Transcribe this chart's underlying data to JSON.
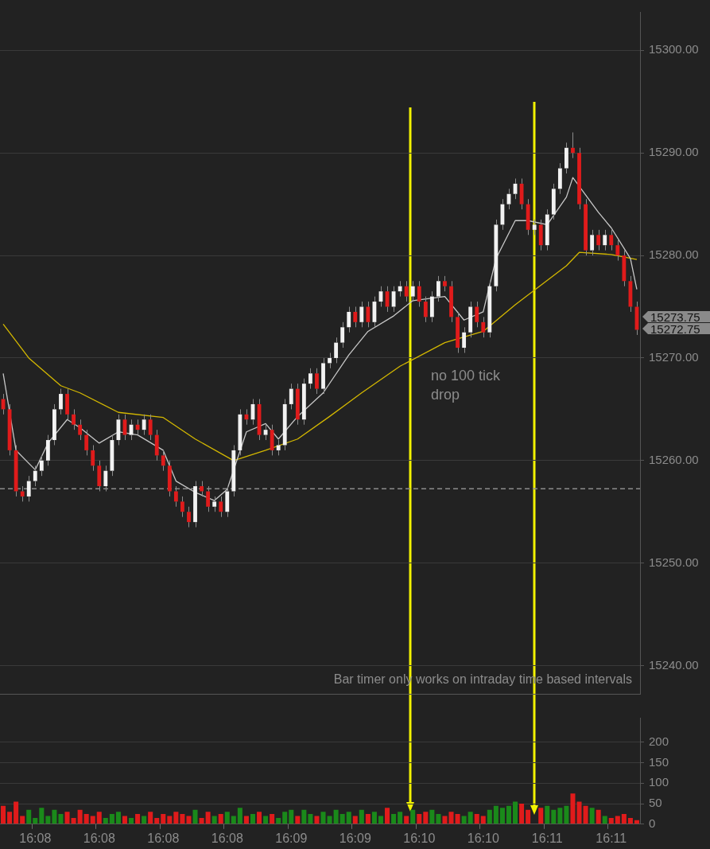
{
  "chart_data": [
    {
      "type": "candlestick",
      "categories": [
        null,
        null,
        null,
        null,
        null,
        null,
        null,
        null,
        null,
        null,
        null,
        null,
        null,
        null,
        null,
        null,
        null,
        null,
        null,
        null,
        null,
        null,
        null,
        null,
        null,
        null,
        null,
        null,
        null,
        null,
        null,
        null,
        null,
        null,
        null,
        null,
        null,
        null,
        null,
        null,
        null,
        null,
        null,
        null,
        null,
        null,
        null,
        null,
        null,
        null,
        null,
        null,
        null,
        null,
        null,
        null,
        null,
        null,
        null,
        null,
        null,
        null,
        null,
        null,
        null,
        null,
        null,
        null,
        null,
        null,
        null,
        null,
        null,
        null,
        null,
        null,
        null,
        null,
        null,
        null,
        null,
        null,
        null,
        null,
        null,
        null,
        null,
        null,
        null,
        null,
        null,
        null,
        null,
        null,
        null,
        null,
        null,
        null,
        null,
        null
      ],
      "ohlc": [
        [
          15266,
          15266.5,
          15264.5,
          15265
        ],
        [
          15265,
          15265.5,
          15260.5,
          15261
        ],
        [
          15261,
          15261.5,
          15256.5,
          15257
        ],
        [
          15257,
          15257.5,
          15256,
          15256.5
        ],
        [
          15256.5,
          15258.5,
          15256,
          15258
        ],
        [
          15258,
          15259.5,
          15257.5,
          15259
        ],
        [
          15259,
          15260.5,
          15258.5,
          15260
        ],
        [
          15260,
          15262.5,
          15259.5,
          15262
        ],
        [
          15262,
          15265.5,
          15261.5,
          15265
        ],
        [
          15265,
          15267,
          15264.5,
          15266.5
        ],
        [
          15266.5,
          15267,
          15264,
          15264.5
        ],
        [
          15264.5,
          15265,
          15263,
          15263.5
        ],
        [
          15263.5,
          15264,
          15262,
          15262.5
        ],
        [
          15262.5,
          15263,
          15260.5,
          15261
        ],
        [
          15261,
          15261.5,
          15259,
          15259.5
        ],
        [
          15259.5,
          15260,
          15257,
          15257.5
        ],
        [
          15257.5,
          15259.5,
          15257,
          15259
        ],
        [
          15259,
          15262.5,
          15258.5,
          15262
        ],
        [
          15262,
          15264.5,
          15261.5,
          15264
        ],
        [
          15264,
          15264.5,
          15262,
          15262.5
        ],
        [
          15262.5,
          15264,
          15262,
          15263.5
        ],
        [
          15263.5,
          15264,
          15262.5,
          15263
        ],
        [
          15263,
          15264.5,
          15262.5,
          15264
        ],
        [
          15264,
          15264.5,
          15262,
          15262.5
        ],
        [
          15262.5,
          15263,
          15260,
          15260.5
        ],
        [
          15260.5,
          15261,
          15259,
          15259.5
        ],
        [
          15259.5,
          15260,
          15256.5,
          15257
        ],
        [
          15257,
          15257.5,
          15255.5,
          15256
        ],
        [
          15256,
          15256.5,
          15254.5,
          15255
        ],
        [
          15255,
          15255.5,
          15253.5,
          15254
        ],
        [
          15254,
          15258,
          15253.5,
          15257.5
        ],
        [
          15257.5,
          15258,
          15256.5,
          15257
        ],
        [
          15257,
          15257.5,
          15255,
          15255.5
        ],
        [
          15255.5,
          15256.5,
          15255,
          15256
        ],
        [
          15256,
          15256.5,
          15254.5,
          15255
        ],
        [
          15255,
          15257.5,
          15254.5,
          15257
        ],
        [
          15257,
          15261.5,
          15256.5,
          15261
        ],
        [
          15261,
          15265,
          15260.5,
          15264.5
        ],
        [
          15264.5,
          15265,
          15263.5,
          15264
        ],
        [
          15264,
          15266,
          15263.5,
          15265.5
        ],
        [
          15265.5,
          15266,
          15262,
          15262.5
        ],
        [
          15262.5,
          15263.5,
          15262,
          15263
        ],
        [
          15263,
          15263.5,
          15260.5,
          15261
        ],
        [
          15261,
          15262,
          15260.5,
          15261.5
        ],
        [
          15261.5,
          15266,
          15261,
          15265.5
        ],
        [
          15265.5,
          15267.5,
          15265,
          15267
        ],
        [
          15267,
          15267.5,
          15263.5,
          15264
        ],
        [
          15264,
          15268,
          15263.5,
          15267.5
        ],
        [
          15267.5,
          15269,
          15267,
          15268.5
        ],
        [
          15268.5,
          15269,
          15266.5,
          15267
        ],
        [
          15267,
          15270,
          15266.5,
          15269.5
        ],
        [
          15269.5,
          15270.5,
          15269,
          15270
        ],
        [
          15270,
          15272,
          15269.5,
          15271.5
        ],
        [
          15271.5,
          15273.5,
          15271,
          15273
        ],
        [
          15273,
          15275,
          15272.5,
          15274.5
        ],
        [
          15274.5,
          15275,
          15273,
          15273.5
        ],
        [
          15273.5,
          15275.5,
          15273,
          15275
        ],
        [
          15275,
          15275.5,
          15273,
          15273.5
        ],
        [
          15273.5,
          15276,
          15273,
          15275.5
        ],
        [
          15275.5,
          15277,
          15275,
          15276.5
        ],
        [
          15276.5,
          15277,
          15274.5,
          15275
        ],
        [
          15275,
          15277,
          15274.5,
          15276.5
        ],
        [
          15276.5,
          15277.5,
          15276,
          15277
        ],
        [
          15277,
          15277.5,
          15275.5,
          15276
        ],
        [
          15276,
          15277.5,
          15275.5,
          15277
        ],
        [
          15277,
          15277.5,
          15275,
          15275.5
        ],
        [
          15275.5,
          15276,
          15273.5,
          15274
        ],
        [
          15274,
          15276.5,
          15273.5,
          15276
        ],
        [
          15276,
          15278,
          15275.5,
          15277.5
        ],
        [
          15277.5,
          15278,
          15276.5,
          15277
        ],
        [
          15277,
          15277.5,
          15273.5,
          15274
        ],
        [
          15274,
          15274.5,
          15270.5,
          15271
        ],
        [
          15271,
          15273,
          15270.5,
          15272.5
        ],
        [
          15272.5,
          15275.5,
          15272,
          15275
        ],
        [
          15275,
          15275.5,
          15273,
          15273.5
        ],
        [
          15273.5,
          15274,
          15272,
          15272.5
        ],
        [
          15272.5,
          15277.5,
          15272,
          15277
        ],
        [
          15277,
          15283.5,
          15276.5,
          15283
        ],
        [
          15283,
          15285.5,
          15282.5,
          15285
        ],
        [
          15285,
          15286.5,
          15284.5,
          15286
        ],
        [
          15286,
          15287.5,
          15285.5,
          15287
        ],
        [
          15287,
          15287.5,
          15284.5,
          15285
        ],
        [
          15285,
          15285.5,
          15282,
          15282.5
        ],
        [
          15282.5,
          15283.5,
          15282,
          15283
        ],
        [
          15283,
          15283.5,
          15280.5,
          15281
        ],
        [
          15281,
          15284.5,
          15280.5,
          15284
        ],
        [
          15284,
          15287,
          15283.5,
          15286.5
        ],
        [
          15286.5,
          15289,
          15286,
          15288.5
        ],
        [
          15288.5,
          15291,
          15288,
          15290.5
        ],
        [
          15290.5,
          15292,
          15289.5,
          15290
        ],
        [
          15290,
          15290.5,
          15284.5,
          15285
        ],
        [
          15285,
          15285.5,
          15280,
          15280.5
        ],
        [
          15280.5,
          15282.5,
          15280,
          15282
        ],
        [
          15282,
          15282.5,
          15280.5,
          15281
        ],
        [
          15281,
          15282.5,
          15280.5,
          15282
        ],
        [
          15282,
          15282.5,
          15280.5,
          15281
        ],
        [
          15281,
          15281.5,
          15279.5,
          15280
        ],
        [
          15280,
          15280.5,
          15277,
          15277.5
        ],
        [
          15277.5,
          15278,
          15274.5,
          15275
        ],
        [
          15275,
          15275.5,
          15272.25,
          15272.75
        ]
      ],
      "series": [
        {
          "type": "line",
          "color": "#c8c8c8",
          "values": [
            15268.5,
            null,
            15261,
            null,
            null,
            15259.1,
            null,
            15261.7,
            null,
            null,
            15264,
            null,
            15263.2,
            null,
            null,
            15261.7,
            null,
            null,
            15262.8,
            null,
            null,
            15262.5,
            null,
            null,
            null,
            15261,
            null,
            15258,
            null,
            null,
            15256.9,
            null,
            null,
            15256.1,
            null,
            15257.2,
            null,
            null,
            15262.8,
            null,
            null,
            15263.6,
            null,
            15262.1,
            null,
            null,
            15264.3,
            null,
            null,
            null,
            15266.6,
            null,
            null,
            null,
            15270.3,
            null,
            null,
            15272.6,
            null,
            null,
            null,
            15274.1,
            null,
            null,
            15275.6,
            null,
            null,
            null,
            null,
            15276,
            null,
            null,
            15273.7,
            null,
            null,
            15274.5,
            null,
            15279.7,
            null,
            null,
            15283.4,
            null,
            15283.4,
            null,
            null,
            15283,
            null,
            null,
            15285.7,
            15287.6,
            null,
            null,
            null,
            15284.2,
            null,
            15282.7,
            null,
            null,
            15279.7,
            15276.7
          ]
        },
        {
          "type": "line",
          "color": "#d4b800",
          "values": [
            15273.3,
            null,
            null,
            null,
            15270,
            null,
            null,
            null,
            null,
            15267.3,
            null,
            null,
            15266.6,
            null,
            null,
            null,
            null,
            null,
            15264.7,
            null,
            null,
            null,
            null,
            null,
            null,
            15264.2,
            null,
            null,
            null,
            null,
            15262.1,
            null,
            null,
            null,
            null,
            null,
            15260,
            null,
            null,
            null,
            null,
            15261,
            null,
            null,
            null,
            null,
            15262.1,
            null,
            null,
            null,
            null,
            15264.3,
            null,
            null,
            null,
            null,
            15266.6,
            null,
            null,
            null,
            null,
            null,
            15269.2,
            null,
            null,
            null,
            null,
            null,
            null,
            15271.5,
            null,
            null,
            null,
            null,
            null,
            15272.6,
            null,
            null,
            null,
            null,
            15275.2,
            null,
            null,
            null,
            15277.1,
            null,
            null,
            null,
            15279,
            null,
            15280.3,
            null,
            null,
            null,
            null,
            15280.1,
            null,
            null,
            null,
            15279.6
          ]
        }
      ],
      "ylim": [
        15237.25,
        15303.75
      ],
      "yticks": [
        {
          "value": 15240,
          "label": "15240.00"
        },
        {
          "value": 15250,
          "label": "15250.00"
        },
        {
          "value": 15260,
          "label": "15260.00"
        },
        {
          "value": 15270,
          "label": "15270.00"
        },
        {
          "value": 15280,
          "label": "15280.00"
        },
        {
          "value": 15290,
          "label": "15290.00"
        },
        {
          "value": 15300,
          "label": "15300.00"
        }
      ],
      "grid": "y",
      "tick_labels": "y",
      "ref_lines": [
        {
          "axis": "y",
          "value": 15257.25,
          "color": "#8c8c8c",
          "line_style": "dashed"
        }
      ],
      "annotations": [
        "no 100 tick drop",
        "Bar timer only works on intraday time based intervals",
        "15273.75",
        "15272.75"
      ]
    },
    {
      "type": "bar",
      "categories": [
        null,
        null,
        null,
        null,
        null,
        "16:08",
        null,
        null,
        null,
        null,
        null,
        null,
        null,
        null,
        null,
        "16:08",
        null,
        null,
        null,
        null,
        null,
        null,
        null,
        null,
        null,
        "16:08",
        null,
        null,
        null,
        null,
        null,
        null,
        null,
        null,
        null,
        "16:08",
        null,
        null,
        null,
        null,
        null,
        null,
        null,
        null,
        null,
        "16:09",
        null,
        null,
        null,
        null,
        null,
        null,
        null,
        null,
        null,
        "16:09",
        null,
        null,
        null,
        null,
        null,
        null,
        null,
        null,
        null,
        "16:10",
        null,
        null,
        null,
        null,
        null,
        null,
        null,
        null,
        null,
        "16:10",
        null,
        null,
        null,
        null,
        null,
        null,
        null,
        null,
        null,
        "16:11",
        null,
        null,
        null,
        null,
        null,
        null,
        null,
        null,
        null,
        "16:11",
        null,
        null,
        null,
        null
      ],
      "values": [
        45,
        30,
        55,
        20,
        35,
        15,
        40,
        20,
        35,
        25,
        30,
        15,
        35,
        25,
        20,
        30,
        15,
        25,
        30,
        20,
        15,
        25,
        20,
        30,
        15,
        25,
        20,
        30,
        25,
        20,
        35,
        15,
        30,
        20,
        25,
        30,
        20,
        40,
        20,
        25,
        30,
        20,
        25,
        15,
        30,
        35,
        20,
        35,
        25,
        20,
        30,
        20,
        35,
        25,
        30,
        20,
        35,
        25,
        30,
        20,
        40,
        25,
        30,
        20,
        35,
        25,
        30,
        35,
        25,
        20,
        30,
        25,
        20,
        30,
        25,
        20,
        35,
        45,
        40,
        45,
        55,
        50,
        35,
        null,
        40,
        45,
        35,
        40,
        45,
        75,
        55,
        45,
        40,
        35,
        20,
        15,
        20,
        25,
        15,
        10
      ],
      "colors": [
        "#e01b1b",
        "#e01b1b",
        "#e01b1b",
        "#e01b1b",
        "#1a8a1a",
        "#1a8a1a",
        "#1a8a1a",
        "#1a8a1a",
        "#1a8a1a",
        "#1a8a1a",
        "#e01b1b",
        "#e01b1b",
        "#e01b1b",
        "#e01b1b",
        "#e01b1b",
        "#e01b1b",
        "#1a8a1a",
        "#1a8a1a",
        "#1a8a1a",
        "#e01b1b",
        "#1a8a1a",
        "#e01b1b",
        "#1a8a1a",
        "#e01b1b",
        "#e01b1b",
        "#e01b1b",
        "#e01b1b",
        "#e01b1b",
        "#e01b1b",
        "#e01b1b",
        "#1a8a1a",
        "#e01b1b",
        "#e01b1b",
        "#1a8a1a",
        "#e01b1b",
        "#1a8a1a",
        "#1a8a1a",
        "#1a8a1a",
        "#e01b1b",
        "#1a8a1a",
        "#e01b1b",
        "#1a8a1a",
        "#e01b1b",
        "#1a8a1a",
        "#1a8a1a",
        "#1a8a1a",
        "#e01b1b",
        "#1a8a1a",
        "#1a8a1a",
        "#e01b1b",
        "#1a8a1a",
        "#1a8a1a",
        "#1a8a1a",
        "#1a8a1a",
        "#1a8a1a",
        "#e01b1b",
        "#1a8a1a",
        "#e01b1b",
        "#1a8a1a",
        "#1a8a1a",
        "#e01b1b",
        "#1a8a1a",
        "#1a8a1a",
        "#e01b1b",
        "#1a8a1a",
        "#e01b1b",
        "#e01b1b",
        "#1a8a1a",
        "#1a8a1a",
        "#e01b1b",
        "#e01b1b",
        "#e01b1b",
        "#1a8a1a",
        "#1a8a1a",
        "#e01b1b",
        "#e01b1b",
        "#1a8a1a",
        "#1a8a1a",
        "#1a8a1a",
        "#1a8a1a",
        "#1a8a1a",
        "#e01b1b",
        "#e01b1b",
        "#1a8a1a",
        "#e01b1b",
        "#1a8a1a",
        "#1a8a1a",
        "#1a8a1a",
        "#1a8a1a",
        "#e01b1b",
        "#e01b1b",
        "#e01b1b",
        "#1a8a1a",
        "#e01b1b",
        "#1a8a1a",
        "#e01b1b",
        "#e01b1b",
        "#e01b1b",
        "#e01b1b",
        "#e01b1b"
      ],
      "ylim": [
        0,
        260
      ],
      "yticks": [
        0,
        50,
        100,
        150,
        200
      ],
      "grid": "y"
    }
  ]
}
